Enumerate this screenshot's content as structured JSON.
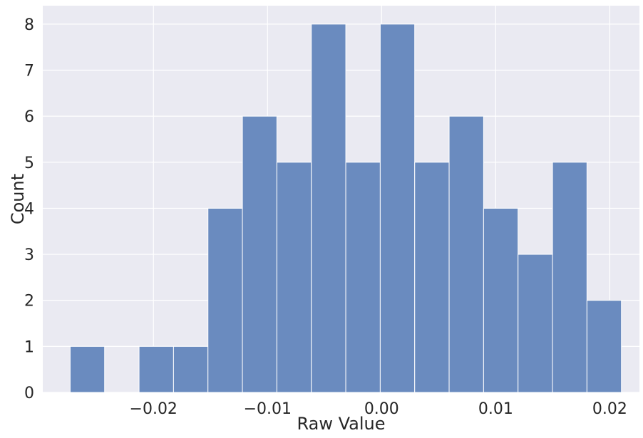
{
  "chart_data": {
    "type": "bar",
    "subtype": "histogram",
    "title": "",
    "xlabel": "Raw Value",
    "ylabel": "Count",
    "bin_start": -0.0273,
    "bin_width": 0.00302,
    "counts": [
      1,
      0,
      1,
      1,
      4,
      6,
      5,
      8,
      5,
      8,
      5,
      6,
      4,
      3,
      5,
      2
    ],
    "xlim": [
      -0.0297,
      0.0226
    ],
    "ylim": [
      0,
      8.4
    ],
    "x_ticks": [
      {
        "value": -0.02,
        "label": "−0.02"
      },
      {
        "value": -0.01,
        "label": "−0.01"
      },
      {
        "value": 0.0,
        "label": "0.00"
      },
      {
        "value": 0.01,
        "label": "0.01"
      },
      {
        "value": 0.02,
        "label": "0.02"
      }
    ],
    "y_ticks": [
      {
        "value": 0,
        "label": "0"
      },
      {
        "value": 1,
        "label": "1"
      },
      {
        "value": 2,
        "label": "2"
      },
      {
        "value": 3,
        "label": "3"
      },
      {
        "value": 4,
        "label": "4"
      },
      {
        "value": 5,
        "label": "5"
      },
      {
        "value": 6,
        "label": "6"
      },
      {
        "value": 7,
        "label": "7"
      },
      {
        "value": 8,
        "label": "8"
      }
    ],
    "grid": true,
    "colors": {
      "background": "#eaeaf2",
      "grid": "#ffffff",
      "bar": "#6a8bbf",
      "bar_edge": "#ffffff"
    }
  }
}
